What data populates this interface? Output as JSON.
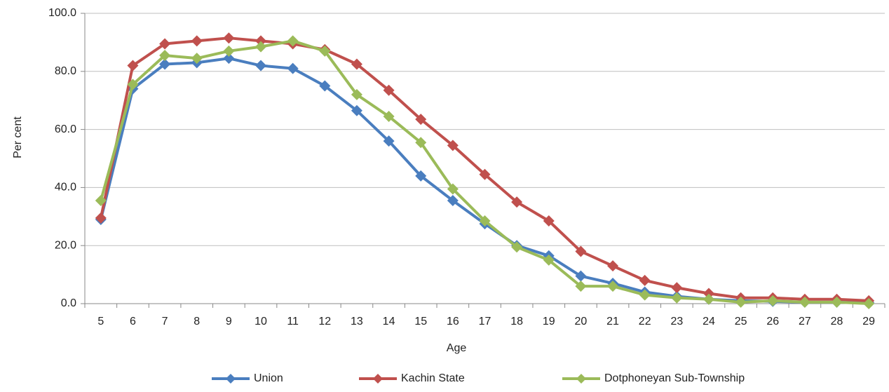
{
  "chart_data": {
    "type": "line",
    "x_label": "Age",
    "y_label": "Per cent",
    "categories": [
      "5",
      "6",
      "7",
      "8",
      "9",
      "10",
      "11",
      "12",
      "13",
      "14",
      "15",
      "16",
      "17",
      "18",
      "19",
      "20",
      "21",
      "22",
      "23",
      "24",
      "25",
      "26",
      "27",
      "28",
      "29"
    ],
    "series": [
      {
        "name": "Union",
        "color": "#4a7ebf",
        "values": [
          29,
          74,
          82.5,
          83,
          84.5,
          82,
          81,
          75,
          66.5,
          56,
          44,
          35.5,
          27.5,
          20,
          16.5,
          9.5,
          7,
          4,
          2.5,
          1.5,
          1,
          0.8,
          0.5,
          0.5,
          0.3
        ]
      },
      {
        "name": "Kachin State",
        "color": "#c0504d",
        "values": [
          29.5,
          82,
          89.5,
          90.5,
          91.5,
          90.5,
          89.5,
          87.5,
          82.5,
          73.5,
          63.5,
          54.5,
          44.5,
          35,
          28.5,
          18,
          13,
          8,
          5.5,
          3.5,
          2,
          2,
          1.5,
          1.5,
          1
        ]
      },
      {
        "name": "Dotphoneyan Sub-Township",
        "color": "#9bbb59",
        "values": [
          35.5,
          75.5,
          85.5,
          84.5,
          87,
          88.5,
          90.5,
          87,
          72,
          64.5,
          55.5,
          39.5,
          28.5,
          19.5,
          15,
          6,
          6,
          3,
          2,
          1.5,
          0.5,
          1,
          0.5,
          0.5,
          0
        ]
      }
    ],
    "ylim": [
      0,
      100
    ],
    "yticks": [
      {
        "value": 0,
        "label": "0.0"
      },
      {
        "value": 20,
        "label": "20.0"
      },
      {
        "value": 40,
        "label": "40.0"
      },
      {
        "value": 60,
        "label": "60.0"
      },
      {
        "value": 80,
        "label": "80.0"
      },
      {
        "value": 100,
        "label": "100.0"
      }
    ],
    "grid": true,
    "legend": "bottom"
  }
}
